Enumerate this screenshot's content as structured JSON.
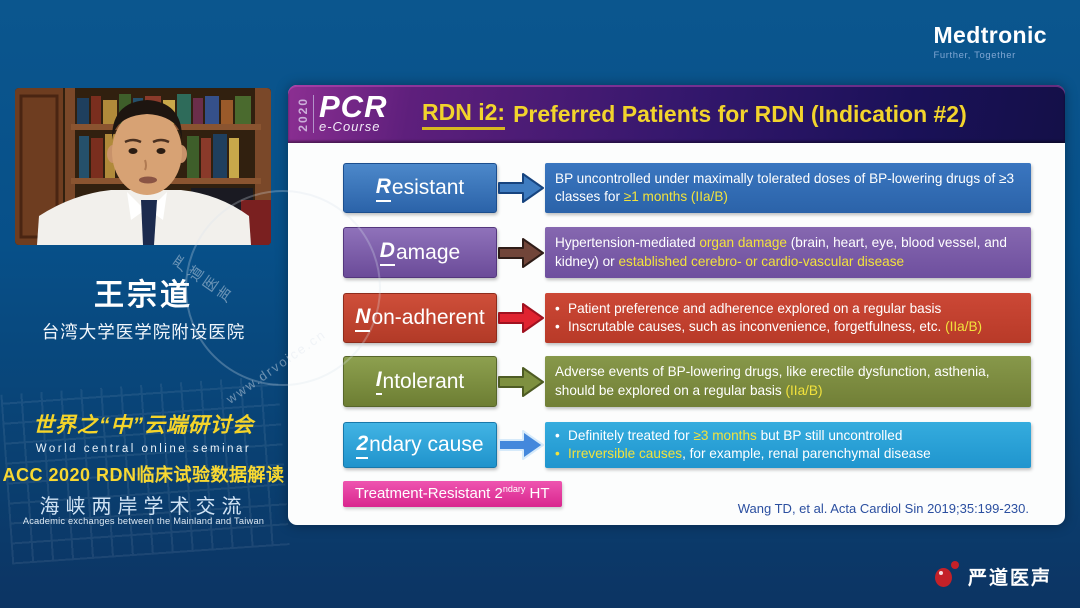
{
  "brand": {
    "medtronic": "Medtronic",
    "medtronic_tagline": "Further, Together"
  },
  "speaker": {
    "name": "王宗道",
    "affiliation": "台湾大学医学院附设医院"
  },
  "seminar": {
    "title_cn": "世界之“中”云端研讨会",
    "title_en": "World central online seminar",
    "session_title": "ACC 2020 RDN临床试验数据解读",
    "exchange_cn": "海峡两岸学术交流",
    "exchange_en": "Academic exchanges between the Mainland and Taiwan"
  },
  "slide": {
    "logo": {
      "year": "2020",
      "brand": "PCR",
      "sub": "e-Course"
    },
    "title_prefix": "RDN i2:",
    "title_rest": "Preferred Patients for RDN (Indication #2)",
    "title_color": "#f2d42c",
    "rows": [
      {
        "key": "resistant",
        "label_lead": "R",
        "label_rest": "esistant",
        "colors": {
          "label_top": "#4c88ca",
          "label_bottom": "#2b63a9",
          "border": "#1c4e8e",
          "content_top": "#3a76c0",
          "content_bottom": "#2b63a9",
          "arrow_fill": "#3f7cc0",
          "arrow_stroke": "#17447f"
        },
        "paragraph": [
          {
            "t": "BP uncontrolled under maximally tolerated doses of BP-lowering drugs of ≥3 classes for "
          },
          {
            "t": "≥1 months (IIa/B)",
            "y": true
          }
        ]
      },
      {
        "key": "damage",
        "label_lead": "D",
        "label_rest": "amage",
        "colors": {
          "label_top": "#8f72ba",
          "label_bottom": "#6b4b99",
          "border": "#54377d",
          "content_top": "#8668b0",
          "content_bottom": "#6e4f9e",
          "arrow_fill": "#714539",
          "arrow_stroke": "#2f1d18"
        },
        "paragraph": [
          {
            "t": "Hypertension-mediated "
          },
          {
            "t": "organ damage",
            "y": true
          },
          {
            "t": " (brain, heart, eye, blood vessel, and kidney) or "
          },
          {
            "t": "established cerebro- or cardio-vascular disease",
            "y": true
          }
        ]
      },
      {
        "key": "non-adherent",
        "label_lead": "N",
        "label_rest": "on-adherent",
        "colors": {
          "label_top": "#cf4f3a",
          "label_bottom": "#b23a27",
          "border": "#8e2c1c",
          "content_top": "#cc4836",
          "content_bottom": "#b83a28",
          "arrow_fill": "#e02330",
          "arrow_stroke": "#a01220"
        },
        "bullets": [
          {
            "mark_yellow": false,
            "segs": [
              {
                "t": "Patient preference and adherence explored on a regular basis"
              }
            ]
          },
          {
            "mark_yellow": false,
            "segs": [
              {
                "t": "Inscrutable causes, such as inconvenience, forgetfulness, etc. "
              },
              {
                "t": "(IIa/B)",
                "y": true
              }
            ]
          }
        ]
      },
      {
        "key": "intolerant",
        "label_lead": "I",
        "label_rest": "ntolerant",
        "colors": {
          "label_top": "#8da04f",
          "label_bottom": "#6d7e33",
          "border": "#57662a",
          "content_top": "#87984a",
          "content_bottom": "#717f36",
          "arrow_fill": "#7e9040",
          "arrow_stroke": "#4e5c24"
        },
        "paragraph": [
          {
            "t": "Adverse events of BP-lowering drugs, like erectile dysfunction, asthenia, should be explored on a regular basis "
          },
          {
            "t": "(IIa/B)",
            "y": true
          }
        ]
      },
      {
        "key": "2ndary-cause",
        "label_lead": "2",
        "label_rest": "ndary cause",
        "colors": {
          "label_top": "#42b4e4",
          "label_bottom": "#1f93cc",
          "border": "#1878aa",
          "content_top": "#35acde",
          "content_bottom": "#1f95ce",
          "arrow_fill": "#4488dc",
          "arrow_stroke": "#d6eafa"
        },
        "bullets": [
          {
            "mark_yellow": false,
            "segs": [
              {
                "t": "Definitely treated for "
              },
              {
                "t": "≥3 months",
                "y": true
              },
              {
                "t": " but BP still uncontrolled"
              }
            ]
          },
          {
            "mark_yellow": true,
            "segs": [
              {
                "t": "Irreversible causes",
                "y": true
              },
              {
                "t": ", for example, renal parenchymal disease"
              }
            ]
          }
        ]
      }
    ],
    "footnote_label": {
      "pre": "Treatment-Resistant 2",
      "sup": "ndary",
      "post": " HT"
    },
    "citation": "Wang TD, et al. Acta Cardiol Sin 2019;35:199-230."
  },
  "watermark": {
    "text1": "严道医声",
    "text2": "www.drvoice.cn"
  },
  "footer": {
    "logo_text": "严道医声",
    "logo_color": "#c42128"
  }
}
